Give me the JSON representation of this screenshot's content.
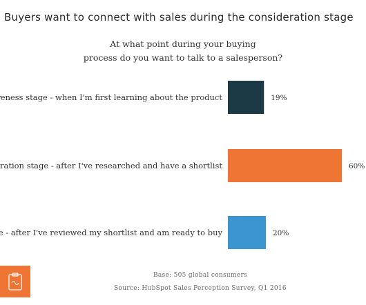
{
  "chart_data": {
    "type": "bar",
    "orientation": "horizontal",
    "title": "Buyers want to connect with sales during the consideration stage",
    "subtitle_lines": [
      "At what point during your buying",
      "process do you want to talk to a salesperson?"
    ],
    "categories": [
      "Awareness stage - when I'm first learning about the product",
      "Consideration stage - after I've researched and have a shortlist",
      "Decision stage - after I've reviewed my shortlist and am ready to buy"
    ],
    "values": [
      19,
      60,
      20
    ],
    "value_labels": [
      "19%",
      "60%",
      "20%"
    ],
    "unit": "%",
    "bar_colors": [
      "#1b3a45",
      "#ef7535",
      "#3b95d0"
    ],
    "xlim": [
      0,
      60
    ],
    "grid": false,
    "legend": "none"
  },
  "footer": {
    "base": "Base: 505 global consumers",
    "source": "Source: HubSpot Sales Perception Survey, Q1 2016"
  },
  "logo": {
    "icon": "clipboard-icon",
    "color": "#ef7535"
  }
}
